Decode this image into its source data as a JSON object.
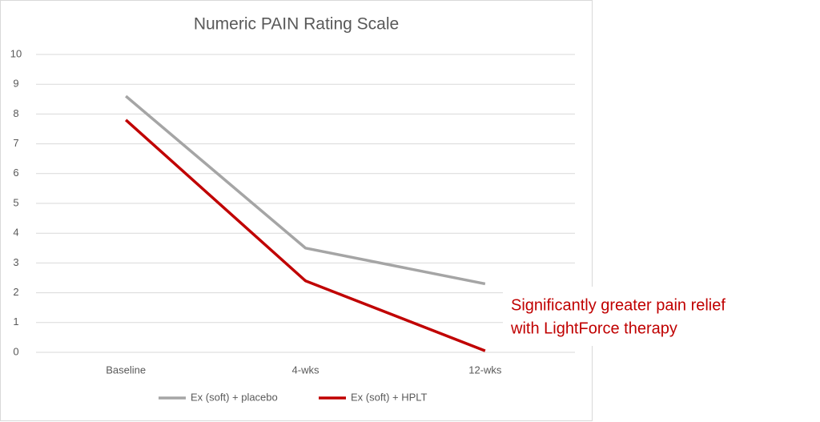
{
  "chart_data": {
    "type": "line",
    "title": "Numeric PAIN Rating Scale",
    "categories": [
      "Baseline",
      "4-wks",
      "12-wks"
    ],
    "series": [
      {
        "name": "Ex (soft) + placebo",
        "color": "#a5a5a5",
        "values": [
          8.6,
          3.5,
          2.3
        ]
      },
      {
        "name": "Ex (soft) + HPLT",
        "color": "#c00000",
        "values": [
          7.8,
          2.4,
          0.05
        ]
      }
    ],
    "ylim": [
      0,
      10
    ],
    "yticks": [
      0,
      1,
      2,
      3,
      4,
      5,
      6,
      7,
      8,
      9,
      10
    ],
    "grid": true,
    "legend": "bottom",
    "annotation": [
      "Significantly greater pain relief",
      "with LightForce therapy"
    ]
  }
}
